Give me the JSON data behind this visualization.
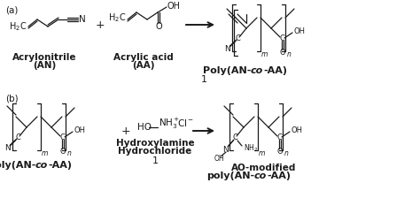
{
  "background_color": "#ffffff",
  "fig_width": 4.74,
  "fig_height": 2.5,
  "dpi": 100,
  "text_color": "#1a1a1a",
  "label_a": "(a)",
  "label_b": "(b)",
  "plus": "+",
  "arrow_color": "#1a1a1a",
  "divider_1_top": "1",
  "divider_1_bot": "1",
  "lbl_acrylonitrile": "Acrylonitrile",
  "lbl_AN": "(AN)",
  "lbl_acrylic_acid": "Acrylic acid",
  "lbl_AA": "(AA)",
  "lbl_poly_top": "Poly(AN-co-AA)",
  "lbl_poly_bot_left": "Poly(AN-co-AA)",
  "lbl_hydroxylamine": "Hydroxylamine",
  "lbl_hydrochloride": "Hydrochloride",
  "lbl_ao_modified": "AO-modified",
  "lbl_ao_poly": "poly(AN-co-AA)"
}
